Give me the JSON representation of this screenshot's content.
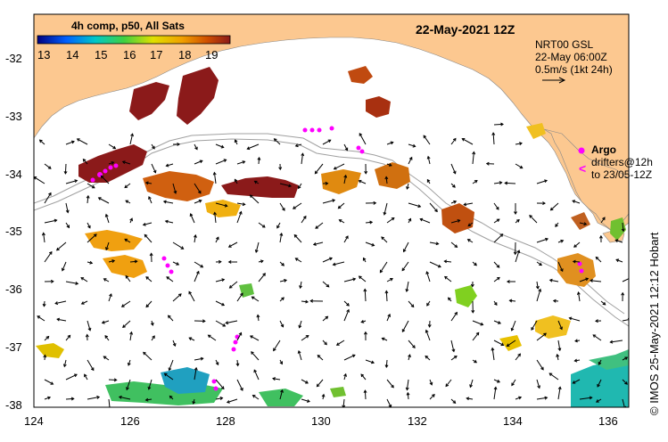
{
  "map": {
    "title": "22-May-2021 12Z",
    "composite_label": "4h comp, p50, All Sats",
    "colorbar": {
      "ticks": [
        "13",
        "14",
        "15",
        "16",
        "17",
        "18",
        "19"
      ],
      "min": 13,
      "max": 19.5,
      "colors": [
        "#0000b0",
        "#0060ff",
        "#00c0c0",
        "#40d040",
        "#e0e000",
        "#f0a000",
        "#d05000",
        "#8b1a1a"
      ]
    },
    "current_legend": {
      "line1": "NRT00 GSL",
      "line2": "22-May 06:00Z",
      "line3": "0.5m/s (1kt 24h)"
    },
    "argo_legend": {
      "argo_label": "Argo",
      "drifters_label": "drifters@12h",
      "drifters_to": "to 23/05-12Z"
    },
    "lat_ticks": [
      "-32",
      "-33",
      "-34",
      "-35",
      "-36",
      "-37",
      "-38"
    ],
    "lon_ticks": [
      "124",
      "126",
      "128",
      "130",
      "132",
      "134",
      "136"
    ],
    "lat_range": [
      -38.1,
      -31.4
    ],
    "lon_range": [
      124,
      136.4
    ],
    "credit": "© IMOS 25-May-2021 12:12 Hobart",
    "colors": {
      "land": "#fcc890",
      "ocean": "#ffffff",
      "argo": "#ff00ff",
      "bathymetry": "#a0a0a0"
    }
  }
}
